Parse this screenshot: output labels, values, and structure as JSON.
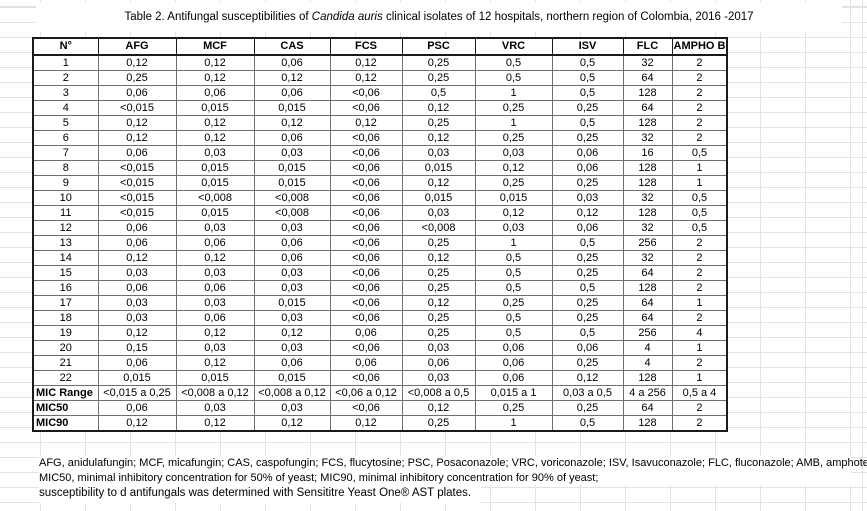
{
  "title": {
    "prefix": "Table 2. Antifungal susceptibilities of ",
    "italic": "Candida auris",
    "suffix": " clinical isolates of 12 hospitals, northern region of Colombia, 2016 -2017"
  },
  "table": {
    "columns": [
      "N°",
      "AFG",
      "MCF",
      "CAS",
      "FCS",
      "PSC",
      "VRC",
      "ISV",
      "FLC",
      "AMPHO B"
    ],
    "rows": [
      [
        "1",
        "0,12",
        "0,12",
        "0,06",
        "0,12",
        "0,25",
        "0,5",
        "0,5",
        "32",
        "2"
      ],
      [
        "2",
        "0,25",
        "0,12",
        "0,12",
        "0,12",
        "0,25",
        "0,5",
        "0,5",
        "64",
        "2"
      ],
      [
        "3",
        "0,06",
        "0,06",
        "0,06",
        "<0,06",
        "0,5",
        "1",
        "0,5",
        "128",
        "2"
      ],
      [
        "4",
        "<0,015",
        "0,015",
        "0,015",
        "<0,06",
        "0,12",
        "0,25",
        "0,25",
        "64",
        "2"
      ],
      [
        "5",
        "0,12",
        "0,12",
        "0,12",
        "0,12",
        "0,25",
        "1",
        "0,5",
        "128",
        "2"
      ],
      [
        "6",
        "0,12",
        "0,12",
        "0,06",
        "<0,06",
        "0,12",
        "0,25",
        "0,25",
        "32",
        "2"
      ],
      [
        "7",
        "0,06",
        "0,03",
        "0,03",
        "<0,06",
        "0,03",
        "0,03",
        "0,06",
        "16",
        "0,5"
      ],
      [
        "8",
        "<0,015",
        "0,015",
        "0,015",
        "<0,06",
        "0,015",
        "0,12",
        "0,06",
        "128",
        "1"
      ],
      [
        "9",
        "<0,015",
        "0,015",
        "0,015",
        "<0,06",
        "0,12",
        "0,25",
        "0,25",
        "128",
        "1"
      ],
      [
        "10",
        "<0,015",
        "<0,008",
        "<0,008",
        "<0,06",
        "0,015",
        "0,015",
        "0,03",
        "32",
        "0,5"
      ],
      [
        "11",
        "<0,015",
        "0,015",
        "<0,008",
        "<0,06",
        "0,03",
        "0,12",
        "0,12",
        "128",
        "0,5"
      ],
      [
        "12",
        "0,06",
        "0,03",
        "0,03",
        "<0,06",
        "<0,008",
        "0,03",
        "0,06",
        "32",
        "0,5"
      ],
      [
        "13",
        "0,06",
        "0,06",
        "0,06",
        "<0,06",
        "0,25",
        "1",
        "0,5",
        "256",
        "2"
      ],
      [
        "14",
        "0,12",
        "0,12",
        "0,06",
        "<0,06",
        "0,12",
        "0,5",
        "0,25",
        "32",
        "2"
      ],
      [
        "15",
        "0,03",
        "0,03",
        "0,03",
        "<0,06",
        "0,25",
        "0,5",
        "0,25",
        "64",
        "2"
      ],
      [
        "16",
        "0,06",
        "0,06",
        "0,03",
        "<0,06",
        "0,25",
        "0,5",
        "0,5",
        "128",
        "2"
      ],
      [
        "17",
        "0,03",
        "0,03",
        "0,015",
        "<0,06",
        "0,12",
        "0,25",
        "0,25",
        "64",
        "1"
      ],
      [
        "18",
        "0,03",
        "0,06",
        "0,03",
        "<0,06",
        "0,25",
        "0,5",
        "0,25",
        "64",
        "2"
      ],
      [
        "19",
        "0,12",
        "0,12",
        "0,12",
        "0,06",
        "0,25",
        "0,5",
        "0,5",
        "256",
        "4"
      ],
      [
        "20",
        "0,15",
        "0,03",
        "0,03",
        "<0,06",
        "0,03",
        "0,06",
        "0,06",
        "4",
        "1"
      ],
      [
        "21",
        "0,06",
        "0,12",
        "0,06",
        "0,06",
        "0,06",
        "0,06",
        "0,25",
        "4",
        "2"
      ],
      [
        "22",
        "0,015",
        "0,015",
        "0,015",
        "<0,06",
        "0,03",
        "0,06",
        "0,12",
        "128",
        "1"
      ]
    ],
    "summary_rows": [
      {
        "label": "MIC Range",
        "values": [
          "<0,015 a 0,25",
          "<0,008 a 0,12",
          "<0,008 a 0,12",
          "<0,06 a 0,12",
          "<0,008 a 0,5",
          "0,015 a 1",
          "0,03 a 0,5",
          "4 a 256",
          "0,5 a 4"
        ]
      },
      {
        "label": "MIC50",
        "values": [
          "0,06",
          "0,03",
          "0,03",
          "<0,06",
          "0,12",
          "0,25",
          "0,25",
          "64",
          "2"
        ]
      },
      {
        "label": "MIC90",
        "values": [
          "0,12",
          "0,12",
          "0,12",
          "0,12",
          "0,25",
          "1",
          "0,5",
          "128",
          "2"
        ]
      }
    ]
  },
  "footnotes": {
    "line1": "AFG, anidulafungin; MCF, micafungin; CAS, caspofungin; FCS, flucytosine; PSC, Posaconazole; VRC, voriconazole; ISV, Isavuconazole;  FLC, fluconazole;   AMB, amphotericin B;",
    "line2": "MIC50, minimal inhibitory concentration for 50% of yeast; MIC90, minimal inhibitory concentration for 90% of yeast;",
    "line3": "susceptibility to d antifungals was determined with Sensititre Yeast One® AST plates."
  },
  "colors": {
    "background": "#ffffff",
    "gridline": "#e3e3e3",
    "table_border": "#1a1a1a",
    "cell_border": "#6f6f6f",
    "text": "#000000"
  }
}
